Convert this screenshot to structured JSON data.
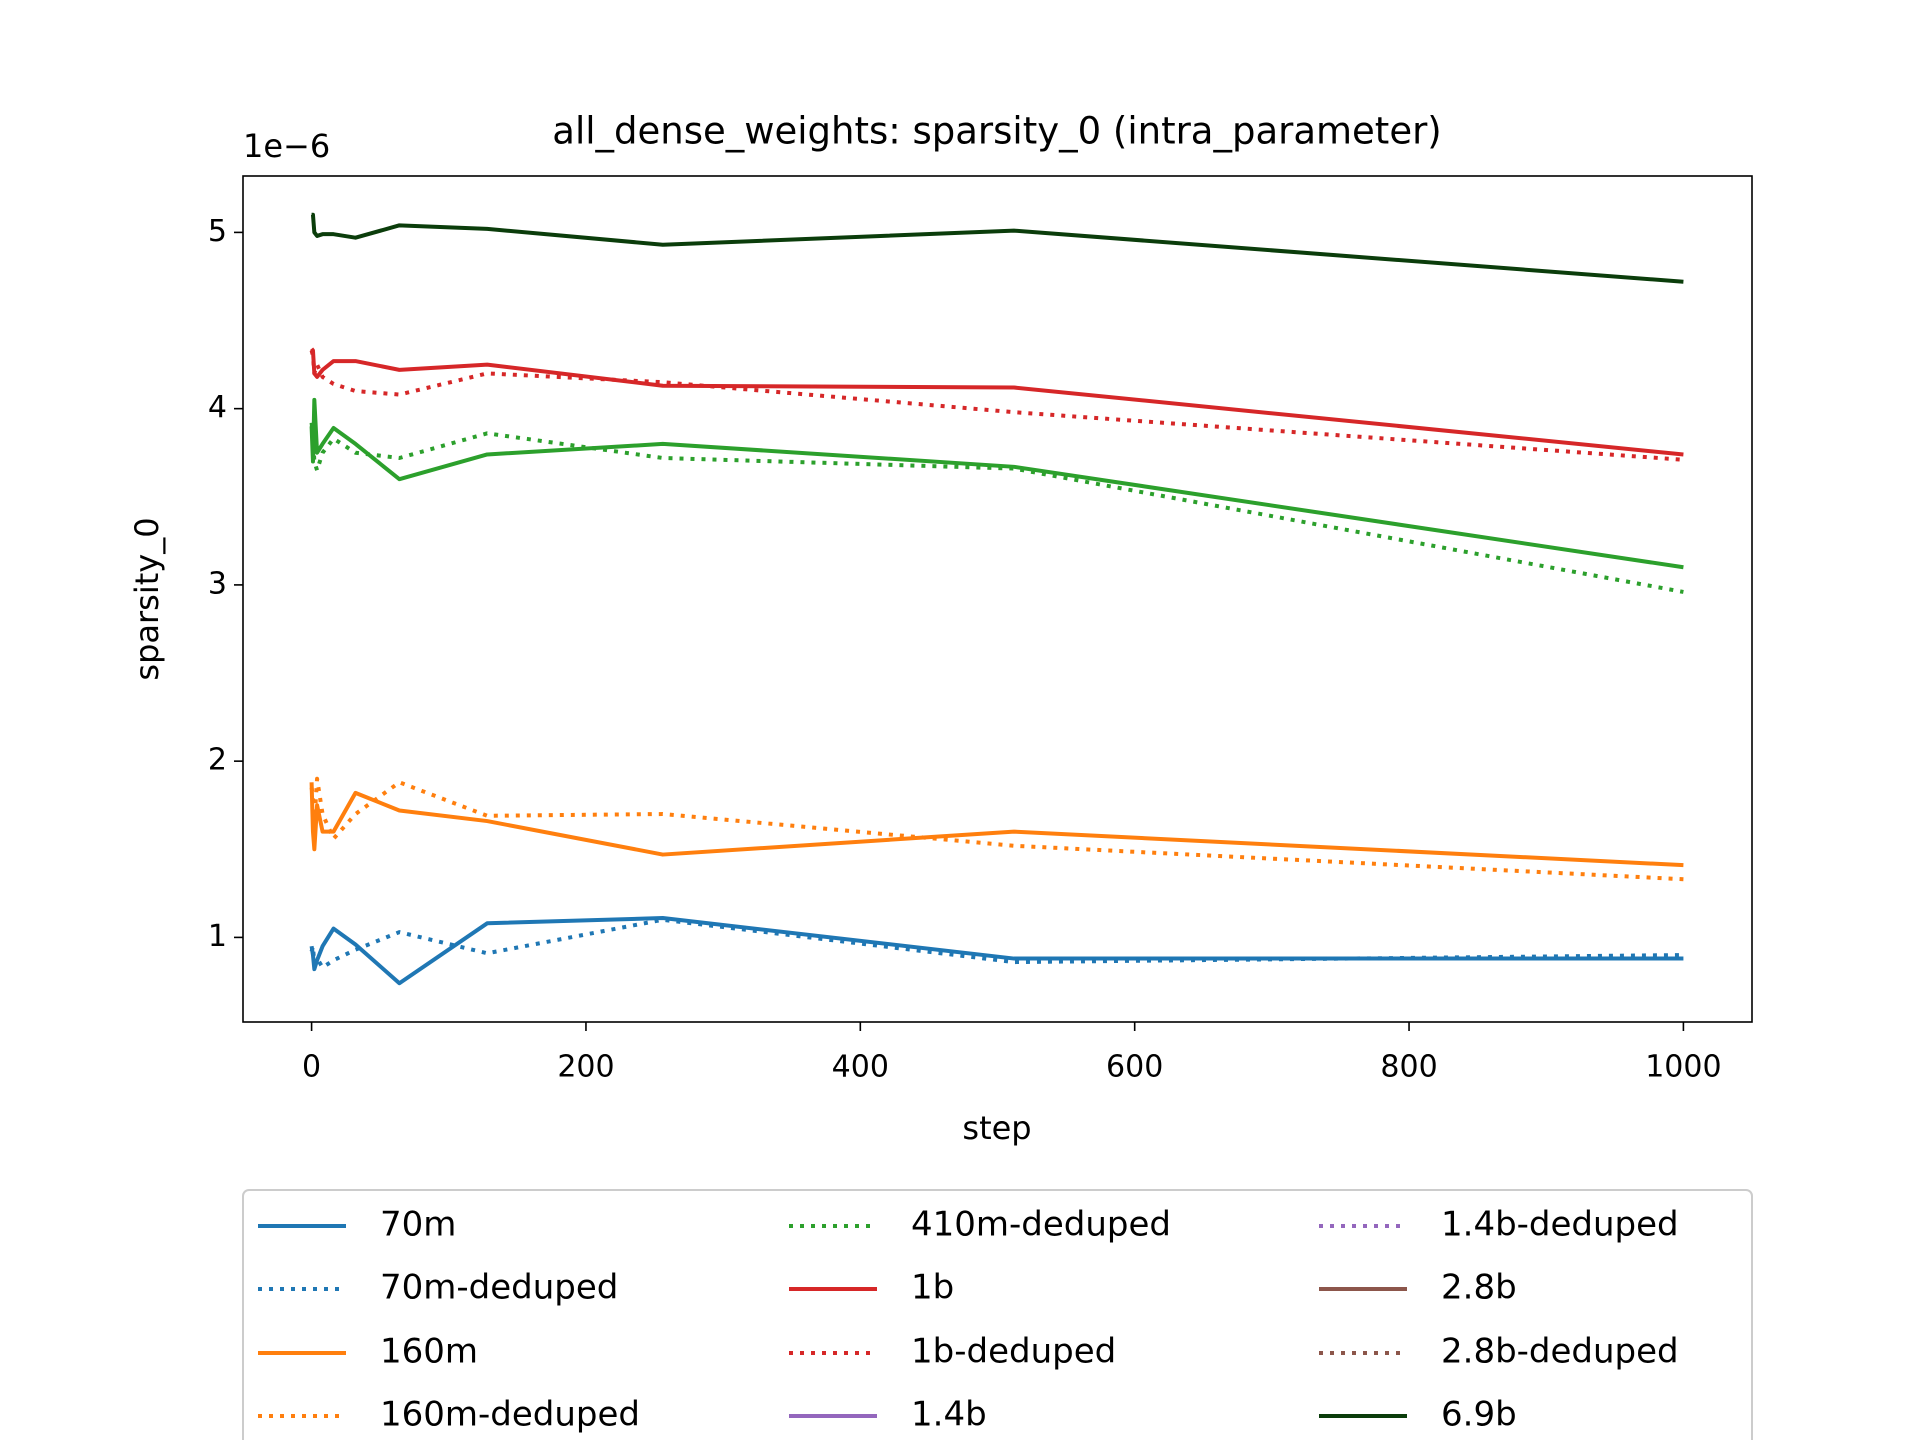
{
  "chart_data": {
    "type": "line",
    "title": "all_dense_weights: sparsity_0 (intra_parameter)",
    "x_label": "step",
    "y_label": "sparsity_0",
    "y_offset_label": "1e−6",
    "x": [
      0,
      1,
      2,
      4,
      8,
      16,
      32,
      64,
      128,
      256,
      512,
      1000
    ],
    "xlim": [
      -50,
      1050
    ],
    "xticks": [
      0,
      200,
      400,
      600,
      800,
      1000
    ],
    "ylim": [
      0.52,
      5.32
    ],
    "yticks": [
      1,
      2,
      3,
      4,
      5
    ],
    "legend": "below",
    "series": [
      {
        "name": "70m",
        "color": "#1f77b4",
        "linestyle": "solid",
        "values": [
          0.95,
          0.9,
          0.82,
          0.87,
          0.95,
          1.05,
          0.96,
          0.74,
          1.08,
          1.11,
          0.88,
          0.88
        ]
      },
      {
        "name": "70m-deduped",
        "color": "#1f77b4",
        "linestyle": "dotted",
        "values": [
          0.92,
          0.95,
          0.85,
          0.88,
          0.83,
          0.87,
          0.93,
          1.03,
          0.91,
          1.1,
          0.86,
          0.9
        ]
      },
      {
        "name": "160m",
        "color": "#ff7f0e",
        "linestyle": "solid",
        "values": [
          1.88,
          1.6,
          1.5,
          1.75,
          1.6,
          1.6,
          1.82,
          1.72,
          1.66,
          1.47,
          1.6,
          1.41
        ]
      },
      {
        "name": "160m-deduped",
        "color": "#ff7f0e",
        "linestyle": "dotted",
        "values": [
          1.85,
          1.8,
          1.65,
          1.9,
          1.7,
          1.56,
          1.7,
          1.88,
          1.69,
          1.7,
          1.52,
          1.33
        ]
      },
      {
        "color": "#2ca02c",
        "linestyle": "solid",
        "values": [
          3.9,
          3.7,
          4.05,
          3.75,
          3.8,
          3.89,
          3.8,
          3.6,
          3.74,
          3.8,
          3.67,
          3.1
        ]
      },
      {
        "name": "410m-deduped",
        "color": "#2ca02c",
        "linestyle": "dotted",
        "values": [
          3.92,
          3.85,
          3.7,
          3.65,
          3.75,
          3.83,
          3.75,
          3.72,
          3.86,
          3.72,
          3.66,
          2.96
        ]
      },
      {
        "name": "1b",
        "color": "#d62728",
        "linestyle": "solid",
        "values": [
          4.34,
          4.33,
          4.2,
          4.18,
          4.22,
          4.27,
          4.27,
          4.22,
          4.25,
          4.13,
          4.12,
          3.74
        ]
      },
      {
        "name": "1b-deduped",
        "color": "#d62728",
        "linestyle": "dotted",
        "values": [
          4.33,
          4.3,
          4.2,
          4.25,
          4.18,
          4.14,
          4.1,
          4.08,
          4.2,
          4.15,
          3.98,
          3.71
        ]
      },
      {
        "name": "1.4b",
        "color": "#9467bd",
        "linestyle": "solid",
        "values": [
          null,
          null,
          null,
          null,
          null,
          null,
          null,
          null,
          null,
          null,
          null,
          null
        ]
      },
      {
        "name": "1.4b-deduped",
        "color": "#9467bd",
        "linestyle": "dotted",
        "values": [
          null,
          null,
          null,
          null,
          null,
          null,
          null,
          null,
          null,
          null,
          null,
          null
        ]
      },
      {
        "name": "2.8b",
        "color": "#8c564b",
        "linestyle": "solid",
        "values": [
          null,
          null,
          null,
          null,
          null,
          null,
          null,
          null,
          null,
          null,
          null,
          null
        ]
      },
      {
        "name": "2.8b-deduped",
        "color": "#8c564b",
        "linestyle": "dotted",
        "values": [
          null,
          null,
          null,
          null,
          null,
          null,
          null,
          null,
          null,
          null,
          null,
          null
        ]
      },
      {
        "name": "6.9b",
        "color": "#0b3d0b",
        "linestyle": "solid",
        "values": [
          5.1,
          5.1,
          5.0,
          4.98,
          4.99,
          4.99,
          4.97,
          5.04,
          5.02,
          4.93,
          5.01,
          4.72
        ]
      }
    ]
  }
}
